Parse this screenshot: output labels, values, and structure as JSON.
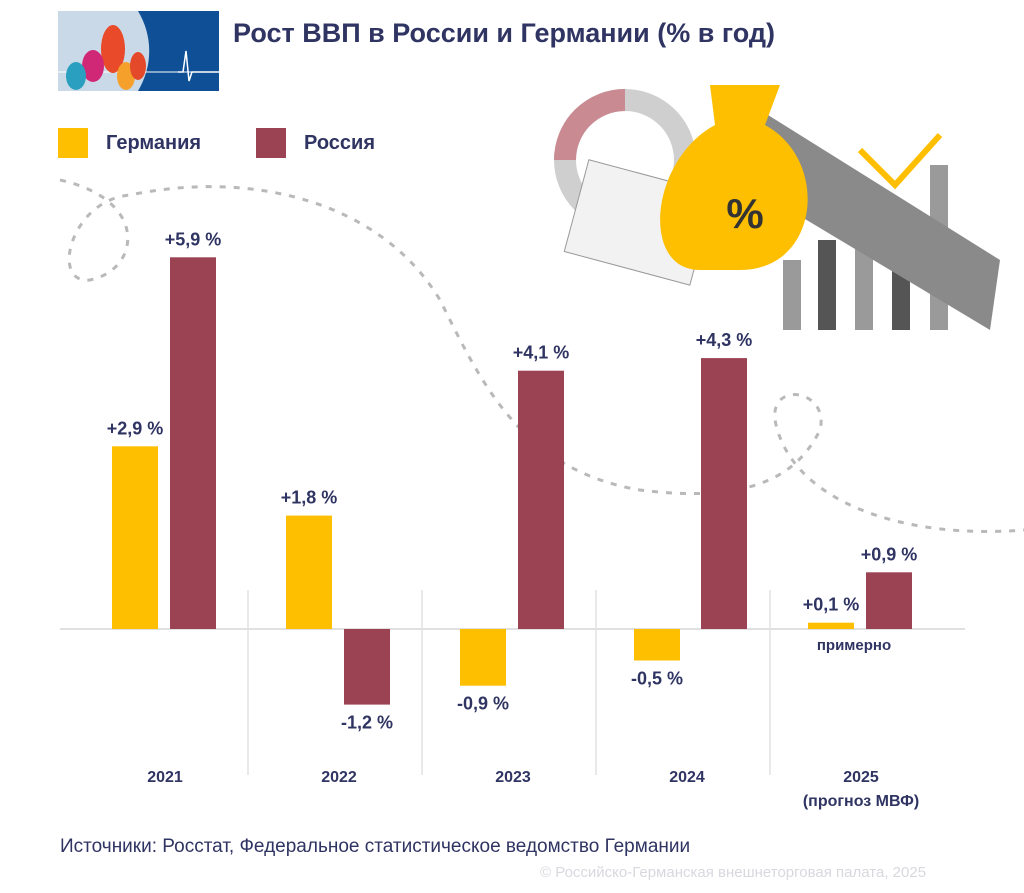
{
  "title": "Рост ВВП в России и Германии (% в год)",
  "legend": [
    {
      "label": "Германия",
      "color": "#fdbf00"
    },
    {
      "label": "Россия",
      "color": "#9b4352"
    }
  ],
  "source": "Источники: Росстат, Федеральное статистическое ведомство Германии",
  "copyright": "© Российско-Германская внешнеторговая палата, 2025",
  "chart_data": {
    "type": "bar",
    "title": "Рост ВВП в России и Германии (% в год)",
    "categories": [
      "2021",
      "2022",
      "2023",
      "2024",
      "2025"
    ],
    "category_notes": [
      "",
      "",
      "",
      "",
      "(прогноз МВФ)"
    ],
    "series": [
      {
        "name": "Германия",
        "color": "#fdbf00",
        "values": [
          2.9,
          1.8,
          -0.9,
          -0.5,
          0.1
        ],
        "labels": [
          "+2,9 %",
          "+1,8 %",
          "-0,9 %",
          "-0,5 %",
          "+0,1 %"
        ]
      },
      {
        "name": "Россия",
        "color": "#9b4352",
        "values": [
          5.9,
          -1.2,
          4.1,
          4.3,
          0.9
        ],
        "labels": [
          "+5,9 %",
          "-1,2 %",
          "+4,1 %",
          "+4,3 %",
          "+0,9 %"
        ]
      }
    ],
    "annotation": "примерно",
    "grid": false,
    "legend_position": "top-left"
  }
}
